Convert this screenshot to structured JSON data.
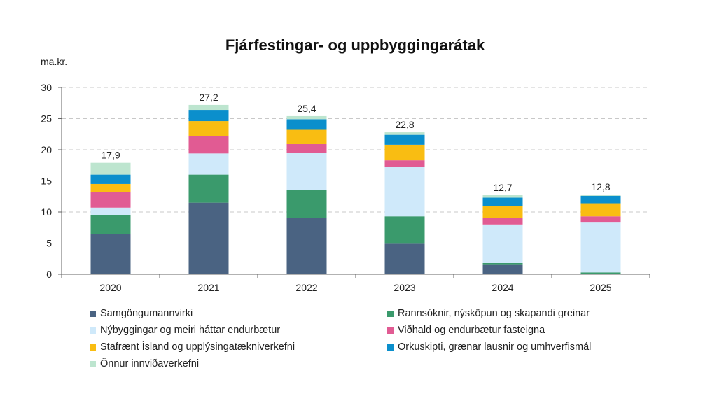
{
  "chart_data": {
    "type": "bar",
    "stacked": true,
    "title": "Fjárfestingar- og uppbyggingarátak",
    "ylabel": "ma.kr.",
    "xlabel": "",
    "ylim": [
      0,
      30
    ],
    "yticks": [
      "0",
      "5",
      "10",
      "15",
      "20",
      "25",
      "30"
    ],
    "categories": [
      "2020",
      "2021",
      "2022",
      "2023",
      "2024",
      "2025"
    ],
    "totals": [
      "17,9",
      "27,2",
      "25,4",
      "22,8",
      "12,7",
      "12,8"
    ],
    "grid": true,
    "legend_position": "bottom",
    "series": [
      {
        "name": "Samgöngumannvirki",
        "color": "#4a6382",
        "values": [
          6.5,
          11.5,
          9.0,
          4.9,
          1.5,
          0.0
        ]
      },
      {
        "name": "Rannsóknir, nýsköpun og skapandi greinar",
        "color": "#3a9a6c",
        "values": [
          3.0,
          4.5,
          4.5,
          4.4,
          0.3,
          0.3
        ]
      },
      {
        "name": "Nýbyggingar og meiri háttar endurbætur",
        "color": "#cfe9fa",
        "values": [
          1.2,
          3.4,
          6.0,
          8.0,
          6.2,
          8.0
        ]
      },
      {
        "name": "Viðhald og endurbætur fasteigna",
        "color": "#e15b93",
        "values": [
          2.5,
          2.8,
          1.4,
          1.0,
          1.0,
          1.0
        ]
      },
      {
        "name": "Stafrænt Ísland og upplýsingatækniverkefni",
        "color": "#f9bd12",
        "values": [
          1.3,
          2.4,
          2.3,
          2.5,
          2.0,
          2.1
        ]
      },
      {
        "name": "Orkuskipti, grænar lausnir og umhverfismál",
        "color": "#0b8fcc",
        "values": [
          1.5,
          1.8,
          1.7,
          1.6,
          1.3,
          1.2
        ]
      },
      {
        "name": "Önnur innviðaverkefni",
        "color": "#bde5cf",
        "values": [
          1.9,
          0.8,
          0.5,
          0.4,
          0.4,
          0.2
        ]
      }
    ]
  }
}
